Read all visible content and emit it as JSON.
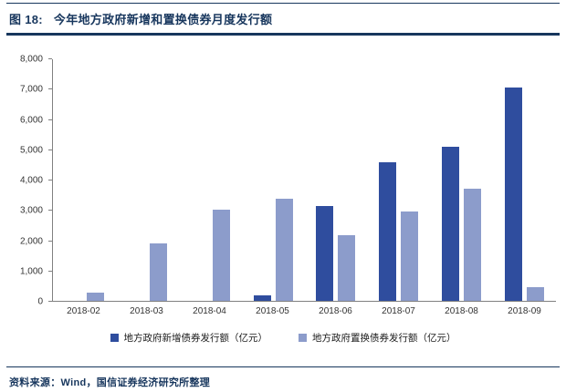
{
  "header": {
    "figure_label": "图 18:",
    "title": "今年地方政府新增和置换债券月度发行额"
  },
  "footer": {
    "source": "资料来源：Wind，国信证券经济研究所整理"
  },
  "colors": {
    "accent": "#17365D",
    "series_new": "#2F4D9E",
    "series_swap": "#8C9CCB",
    "axis": "#808080"
  },
  "chart_data": {
    "type": "bar",
    "title": "图 18: 今年地方政府新增和置换债券月度发行额",
    "categories": [
      "2018-02",
      "2018-03",
      "2018-04",
      "2018-05",
      "2018-06",
      "2018-07",
      "2018-08",
      "2018-09"
    ],
    "series": [
      {
        "name": "地方政府新增债券发行额（亿元）",
        "color": "#2F4D9E",
        "values": [
          0,
          0,
          0,
          170,
          3150,
          4600,
          5100,
          7050
        ]
      },
      {
        "name": "地方政府置换债券发行额（亿元）",
        "color": "#8C9CCB",
        "values": [
          280,
          1900,
          3020,
          3380,
          2180,
          2950,
          3700,
          450
        ]
      }
    ],
    "xlabel": "",
    "ylabel": "",
    "ylim": [
      0,
      8000
    ],
    "ytick_step": 1000,
    "yticks": [
      "0",
      "1,000",
      "2,000",
      "3,000",
      "4,000",
      "5,000",
      "6,000",
      "7,000",
      "8,000"
    ],
    "grid": false,
    "legend_position": "bottom"
  }
}
